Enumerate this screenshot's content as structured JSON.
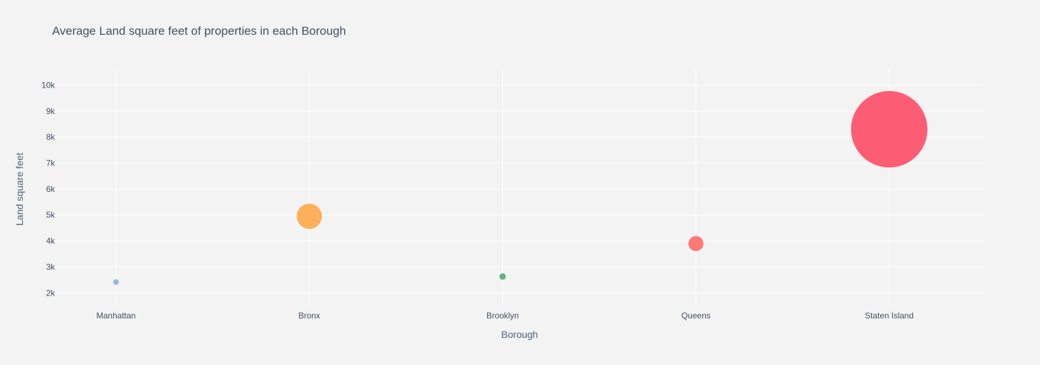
{
  "chart_data": {
    "type": "scatter",
    "title": "Average Land square feet of properties in each Borough",
    "xlabel": "Borough",
    "ylabel": "Land square feet",
    "categories": [
      "Manhattan",
      "Bronx",
      "Brooklyn",
      "Queens",
      "Staten Island"
    ],
    "values": [
      2420,
      4950,
      2630,
      3900,
      8300
    ],
    "marker_colors": [
      "#85b8df",
      "#fdab50",
      "#5fad7c",
      "#fd726e",
      "#fd546d"
    ],
    "marker_opacity": 0.95,
    "marker_size_mode": "bubble size proportional to value",
    "ylim": [
      1500,
      10600
    ],
    "yticks": [
      2000,
      3000,
      4000,
      5000,
      6000,
      7000,
      8000,
      9000,
      10000
    ],
    "ytick_labels": [
      "2k",
      "3k",
      "4k",
      "5k",
      "6k",
      "7k",
      "8k",
      "9k",
      "10k"
    ],
    "grid": true,
    "background_color": "#f3f3f3",
    "grid_color": "#ffffff"
  }
}
